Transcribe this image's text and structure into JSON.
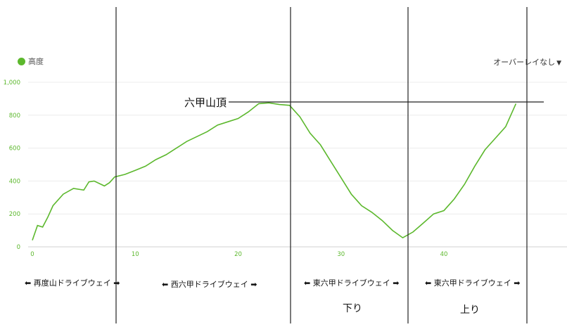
{
  "legend": {
    "label": "高度",
    "color": "#5cb82d"
  },
  "overlay_menu": {
    "label": "オーバーレイなし",
    "caret": "▼"
  },
  "annotations": {
    "peak": "六甲山頂",
    "segment1": "⬅ 再度山ドライブウェイ ➡",
    "segment2": "⬅ 西六甲ドライブウェイ ➡",
    "segment3": "⬅ 東六甲ドライブウェイ ➡",
    "segment4": "⬅ 東六甲ドライブウェイ ➡",
    "down": "下り",
    "up": "上り"
  },
  "chart_data": {
    "type": "line",
    "title": "",
    "xlabel": "",
    "ylabel": "",
    "xlim": [
      0,
      48
    ],
    "ylim": [
      0,
      1000
    ],
    "x_ticks": [
      "0",
      "10",
      "20",
      "30",
      "40"
    ],
    "y_ticks": [
      "0",
      "200",
      "400",
      "600",
      "800",
      "1,000"
    ],
    "grid": true,
    "legend_position": "top-left",
    "series": [
      {
        "name": "高度",
        "color": "#5cb82d",
        "x": [
          0,
          0.5,
          1,
          1.5,
          2,
          3,
          4,
          5,
          5.5,
          6,
          7,
          7.5,
          8,
          9,
          10,
          11,
          12,
          13,
          14,
          15,
          16,
          17,
          18,
          19,
          20,
          21,
          22,
          23,
          24,
          25,
          26,
          27,
          28,
          29,
          30,
          31,
          32,
          33,
          34,
          35,
          36,
          37,
          38,
          39,
          40,
          41,
          42,
          43,
          44,
          45,
          46,
          47
        ],
        "y": [
          40,
          130,
          120,
          180,
          250,
          320,
          355,
          345,
          395,
          400,
          370,
          390,
          425,
          440,
          465,
          490,
          530,
          560,
          600,
          640,
          670,
          700,
          740,
          760,
          780,
          820,
          870,
          875,
          865,
          860,
          790,
          690,
          620,
          520,
          420,
          320,
          250,
          210,
          160,
          100,
          55,
          90,
          145,
          200,
          220,
          290,
          380,
          490,
          590,
          660,
          730,
          870
        ]
      }
    ]
  }
}
